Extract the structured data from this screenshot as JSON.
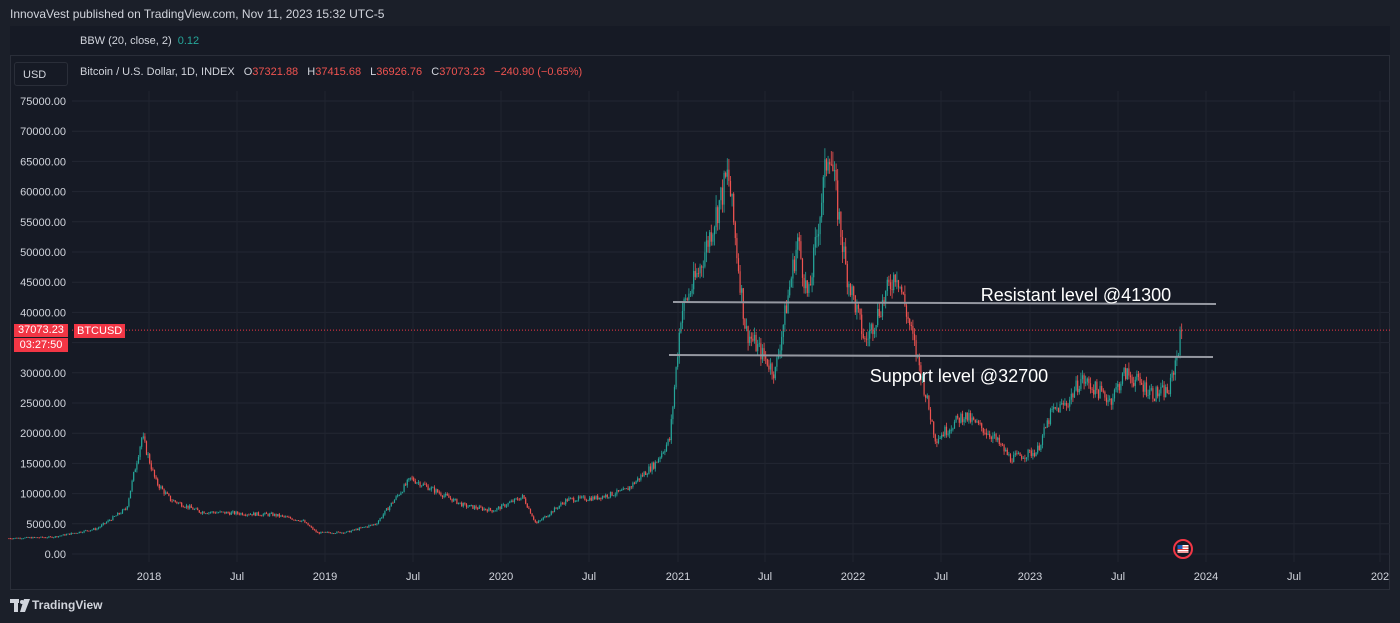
{
  "header": {
    "publisher_line": "InnovaVest published on TradingView.com, Nov 11, 2023 15:32 UTC-5"
  },
  "indicator": {
    "name": "BBW (20, close, 2)",
    "value": "0.12"
  },
  "currency_button": "USD",
  "legend": {
    "symbol": "Bitcoin / U.S. Dollar, 1D, INDEX",
    "open_label": "O",
    "open": "37321.88",
    "high_label": "H",
    "high": "37415.68",
    "low_label": "L",
    "low": "36926.76",
    "close_label": "C",
    "close": "37073.23",
    "change": "−240.90 (−0.65%)"
  },
  "price_tags": {
    "last_price": "37073.23",
    "countdown": "03:27:50",
    "symbol": "BTCUSD"
  },
  "footer": {
    "brand": "TradingView"
  },
  "colors": {
    "up": "#26a69a",
    "down": "#ef5350",
    "level_line": "#9598a1",
    "last_price": "#f23645"
  },
  "chart_data": {
    "type": "line",
    "style": "candlestick",
    "ylim": [
      0,
      75000
    ],
    "y_ticks": [
      "75000.00",
      "70000.00",
      "65000.00",
      "60000.00",
      "55000.00",
      "50000.00",
      "45000.00",
      "40000.00",
      "35000.00",
      "30000.00",
      "25000.00",
      "20000.00",
      "15000.00",
      "10000.00",
      "5000.00",
      "0.00"
    ],
    "x_ticks": [
      "2018",
      "Jul",
      "2019",
      "Jul",
      "2020",
      "Jul",
      "2021",
      "Jul",
      "2022",
      "Jul",
      "2023",
      "Jul",
      "2024",
      "Jul",
      "202"
    ],
    "series": [
      {
        "name": "BTCUSD",
        "x": [
          "2017-03",
          "2017-06",
          "2017-09",
          "2017-11",
          "2017-12-17",
          "2018-01",
          "2018-02",
          "2018-04",
          "2018-06",
          "2018-09",
          "2018-11",
          "2018-12",
          "2019-02",
          "2019-04",
          "2019-06-26",
          "2019-08",
          "2019-10",
          "2019-12",
          "2020-02",
          "2020-03-12",
          "2020-05",
          "2020-07",
          "2020-09",
          "2020-11",
          "2020-12",
          "2021-01-08",
          "2021-02",
          "2021-04-14",
          "2021-05-20",
          "2021-07-20",
          "2021-09-06",
          "2021-09-28",
          "2021-11-10",
          "2021-12",
          "2022-01-24",
          "2022-03-28",
          "2022-05",
          "2022-06-18",
          "2022-08",
          "2022-10",
          "2022-11-21",
          "2023-01",
          "2023-02",
          "2023-03-17",
          "2023-04",
          "2023-06-15",
          "2023-07",
          "2023-09",
          "2023-10",
          "2023-11-11"
        ],
        "values": [
          2600,
          2800,
          4200,
          7500,
          19500,
          12000,
          9000,
          7000,
          6800,
          6500,
          5500,
          3500,
          3600,
          5000,
          12500,
          10500,
          8000,
          7200,
          9500,
          5000,
          9000,
          9300,
          10500,
          15000,
          19000,
          40000,
          47000,
          63000,
          37000,
          30000,
          52000,
          42000,
          68000,
          47000,
          35000,
          47000,
          31000,
          19000,
          23000,
          19500,
          15800,
          17000,
          23500,
          25000,
          29000,
          25500,
          30000,
          26500,
          27000,
          37073
        ]
      }
    ],
    "annotations": [
      {
        "label": "Resistant level @41300",
        "value": 41300
      },
      {
        "label": "Support level @32700",
        "value": 32700
      }
    ]
  }
}
